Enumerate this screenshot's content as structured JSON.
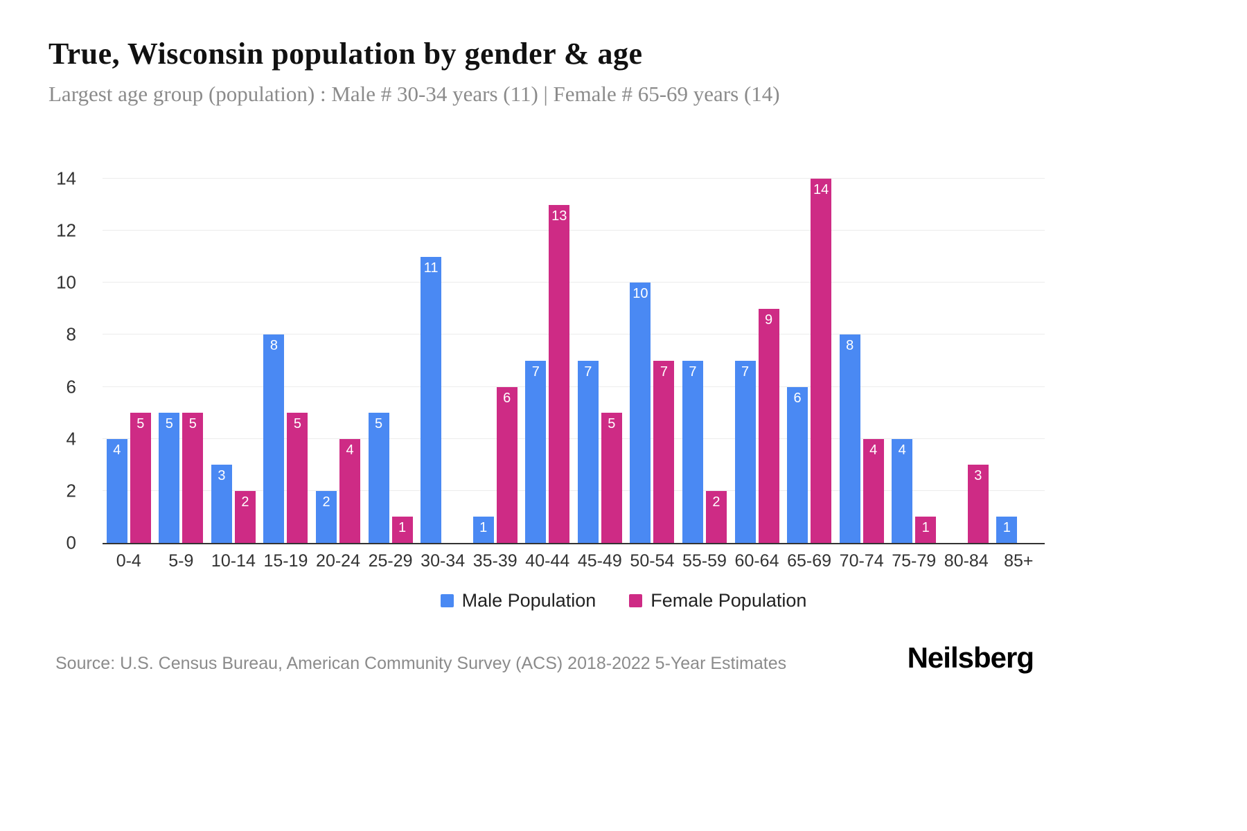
{
  "header": {
    "title": "True, Wisconsin population by gender & age",
    "subtitle": "Largest age group (population) : Male # 30-34 years (11) | Female # 65-69 years (14)"
  },
  "footer": {
    "source": "Source: U.S. Census Bureau, American Community Survey (ACS) 2018-2022 5-Year Estimates",
    "logo_text": "Neilsberg"
  },
  "colors": {
    "male": "#4a89f3",
    "female": "#ce2b85",
    "grid": "#ececec",
    "axis": "#333333"
  },
  "chart_data": {
    "type": "bar",
    "title": "True, Wisconsin population by gender & age",
    "subtitle": "Largest age group (population) : Male # 30-34 years (11) | Female # 65-69 years (14)",
    "categories": [
      "0-4",
      "5-9",
      "10-14",
      "15-19",
      "20-24",
      "25-29",
      "30-34",
      "35-39",
      "40-44",
      "45-49",
      "50-54",
      "55-59",
      "60-64",
      "65-69",
      "70-74",
      "75-79",
      "80-84",
      "85+"
    ],
    "series": [
      {
        "name": "Male Population",
        "color": "#4a89f3",
        "values": [
          4,
          5,
          3,
          8,
          2,
          5,
          11,
          1,
          7,
          7,
          10,
          7,
          7,
          6,
          8,
          4,
          0,
          1
        ]
      },
      {
        "name": "Female Population",
        "color": "#ce2b85",
        "values": [
          5,
          5,
          2,
          5,
          4,
          1,
          0,
          6,
          13,
          5,
          7,
          2,
          9,
          14,
          4,
          1,
          3,
          0
        ]
      }
    ],
    "xlabel": "",
    "ylabel": "",
    "ylim": [
      0,
      14
    ],
    "yticks": [
      0,
      2,
      4,
      6,
      8,
      10,
      12,
      14
    ],
    "grid": true,
    "legend_position": "bottom"
  }
}
